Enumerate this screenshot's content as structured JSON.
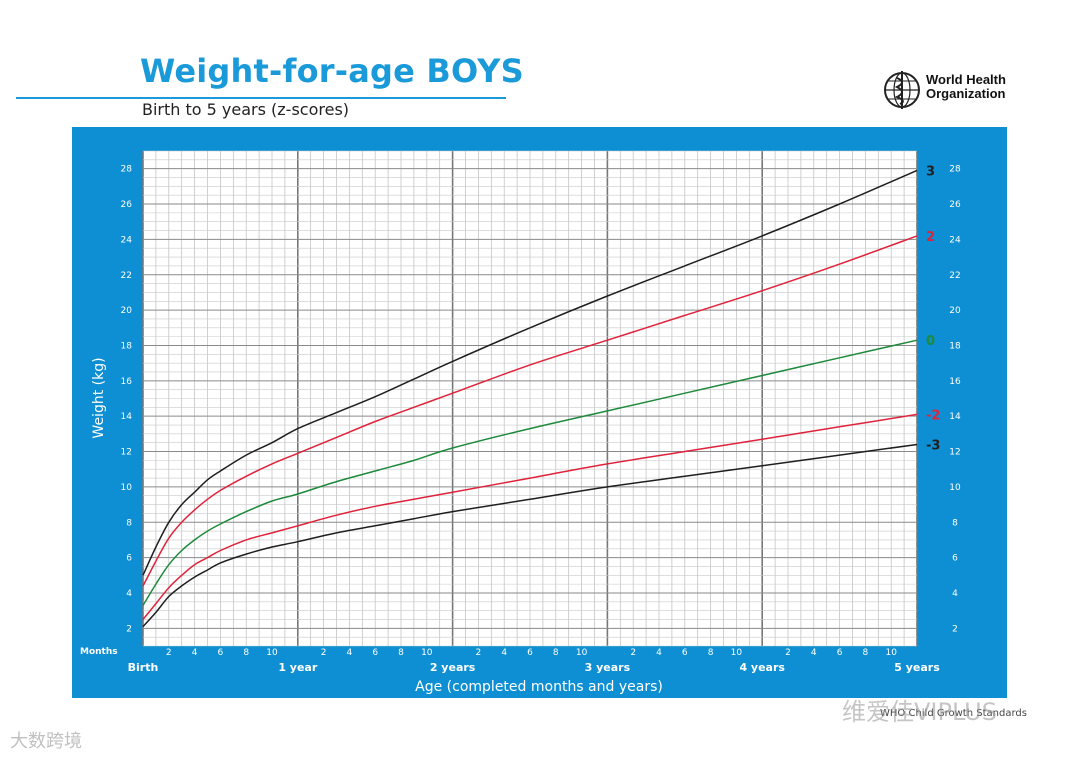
{
  "header": {
    "title": "Weight-for-age BOYS",
    "subtitle": "Birth to 5 years (z-scores)"
  },
  "logo": {
    "line1": "World Health",
    "line2": "Organization",
    "icon": "who-emblem-icon"
  },
  "footer": {
    "source": "WHO Child Growth Standards"
  },
  "watermarks": {
    "bottom_right": "维爱佳VIPLUS",
    "bottom_left": "大数跨境"
  },
  "colors": {
    "panel": "#0e8fd3",
    "title": "#1a9ad9",
    "z3": "#1f1f1f",
    "z2": "#e0223a",
    "z0": "#1e8a3c"
  },
  "chart_data": {
    "type": "line",
    "title": "Weight-for-age BOYS",
    "subtitle": "Birth to 5 years (z-scores)",
    "xlabel": "Age (completed months and years)",
    "ylabel": "Weight (kg)",
    "x_unit_label": "Months",
    "xlim": [
      0,
      60
    ],
    "ylim": [
      1,
      29
    ],
    "grid": true,
    "x_major_labels": [
      "Birth",
      "1 year",
      "2 years",
      "3 years",
      "4 years",
      "5 years"
    ],
    "x_minor_labels": [
      "2",
      "4",
      "6",
      "8",
      "10"
    ],
    "y_ticks": [
      2,
      4,
      6,
      8,
      10,
      12,
      14,
      16,
      18,
      20,
      22,
      24,
      26,
      28
    ],
    "x": [
      0,
      1,
      2,
      3,
      4,
      5,
      6,
      8,
      10,
      12,
      15,
      18,
      21,
      24,
      30,
      36,
      42,
      48,
      54,
      60
    ],
    "series": [
      {
        "name": "3",
        "color": "#1f1f1f",
        "values": [
          5.0,
          6.6,
          8.0,
          9.0,
          9.7,
          10.4,
          10.9,
          11.8,
          12.5,
          13.3,
          14.2,
          15.1,
          16.1,
          17.1,
          19.0,
          20.8,
          22.5,
          24.2,
          26.0,
          27.9
        ]
      },
      {
        "name": "2",
        "color": "#e0223a",
        "values": [
          4.4,
          5.8,
          7.1,
          8.0,
          8.7,
          9.3,
          9.8,
          10.6,
          11.3,
          11.9,
          12.8,
          13.7,
          14.5,
          15.3,
          16.9,
          18.3,
          19.7,
          21.1,
          22.6,
          24.2
        ]
      },
      {
        "name": "0",
        "color": "#1e8a3c",
        "values": [
          3.3,
          4.5,
          5.6,
          6.4,
          7.0,
          7.5,
          7.9,
          8.6,
          9.2,
          9.6,
          10.3,
          10.9,
          11.5,
          12.2,
          13.3,
          14.3,
          15.3,
          16.3,
          17.3,
          18.3
        ]
      },
      {
        "name": "-2",
        "color": "#e0223a",
        "values": [
          2.5,
          3.4,
          4.3,
          5.0,
          5.6,
          6.0,
          6.4,
          7.0,
          7.4,
          7.8,
          8.4,
          8.9,
          9.3,
          9.7,
          10.5,
          11.3,
          12.0,
          12.7,
          13.4,
          14.1
        ]
      },
      {
        "name": "-3",
        "color": "#1f1f1f",
        "values": [
          2.1,
          2.9,
          3.8,
          4.4,
          4.9,
          5.3,
          5.7,
          6.2,
          6.6,
          6.9,
          7.4,
          7.8,
          8.2,
          8.6,
          9.3,
          10.0,
          10.6,
          11.2,
          11.8,
          12.4
        ]
      }
    ]
  }
}
